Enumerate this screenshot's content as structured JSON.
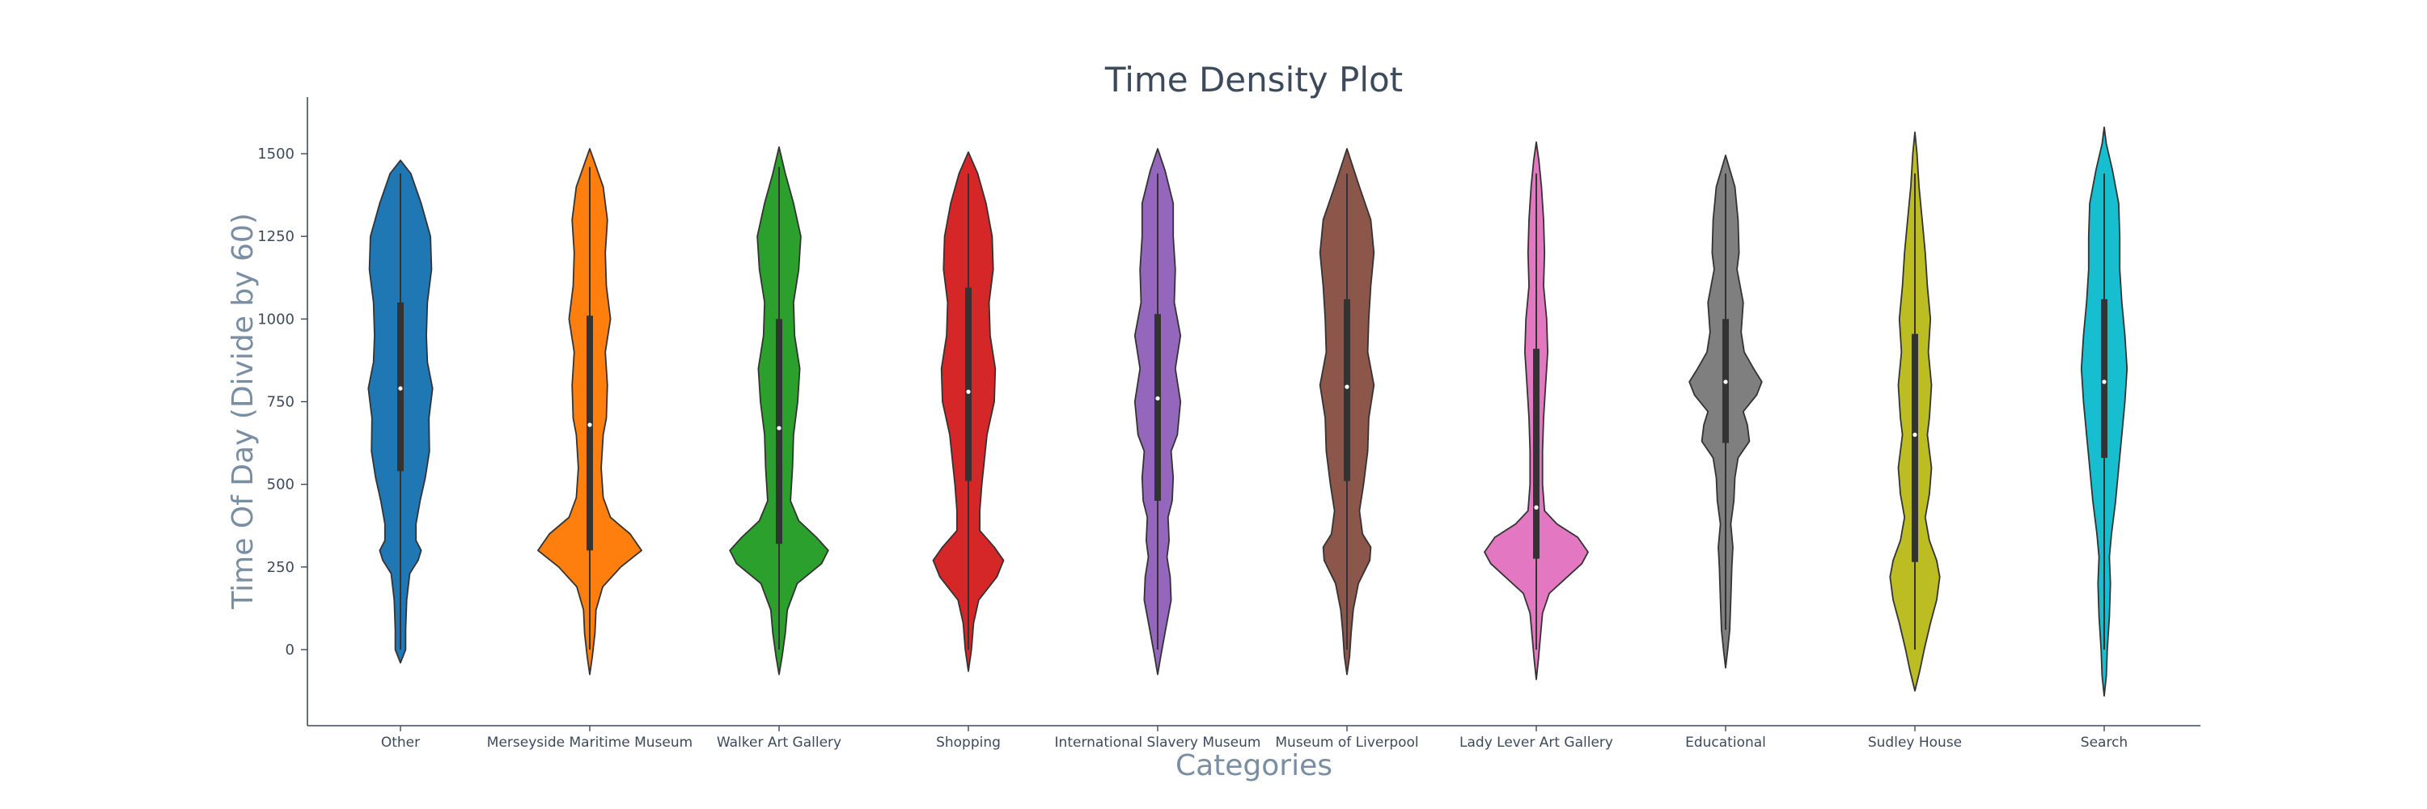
{
  "chart_data": {
    "type": "violin",
    "title": "Time Density Plot",
    "xlabel": "Categories",
    "ylabel": "Time Of Day (Divide by 60)",
    "ylim": [
      -230,
      1680
    ],
    "yticks": [
      0,
      250,
      500,
      750,
      1000,
      1250,
      1500
    ],
    "grid": false,
    "categories": [
      {
        "name": "Other",
        "color": "#1f77b4",
        "min": 0,
        "max": 1440,
        "q1": 540,
        "median": 790,
        "q3": 1050,
        "density": [
          [
            -40,
            0
          ],
          [
            0,
            0.1
          ],
          [
            60,
            0.1
          ],
          [
            150,
            0.12
          ],
          [
            230,
            0.18
          ],
          [
            270,
            0.34
          ],
          [
            300,
            0.4
          ],
          [
            330,
            0.3
          ],
          [
            380,
            0.3
          ],
          [
            450,
            0.38
          ],
          [
            520,
            0.48
          ],
          [
            600,
            0.56
          ],
          [
            700,
            0.55
          ],
          [
            790,
            0.62
          ],
          [
            870,
            0.52
          ],
          [
            950,
            0.5
          ],
          [
            1050,
            0.52
          ],
          [
            1150,
            0.6
          ],
          [
            1250,
            0.58
          ],
          [
            1350,
            0.4
          ],
          [
            1440,
            0.2
          ],
          [
            1480,
            0
          ]
        ]
      },
      {
        "name": "Merseyside Maritime Museum",
        "color": "#ff7f0e",
        "min": 0,
        "max": 1460,
        "q1": 300,
        "median": 680,
        "q3": 1010,
        "density": [
          [
            -75,
            0
          ],
          [
            -20,
            0.05
          ],
          [
            50,
            0.1
          ],
          [
            120,
            0.12
          ],
          [
            190,
            0.25
          ],
          [
            250,
            0.6
          ],
          [
            300,
            1.0
          ],
          [
            350,
            0.78
          ],
          [
            400,
            0.4
          ],
          [
            460,
            0.26
          ],
          [
            550,
            0.22
          ],
          [
            650,
            0.26
          ],
          [
            700,
            0.32
          ],
          [
            800,
            0.34
          ],
          [
            900,
            0.3
          ],
          [
            1000,
            0.4
          ],
          [
            1100,
            0.32
          ],
          [
            1200,
            0.3
          ],
          [
            1300,
            0.34
          ],
          [
            1400,
            0.26
          ],
          [
            1480,
            0.08
          ],
          [
            1515,
            0
          ]
        ]
      },
      {
        "name": "Walker Art Gallery",
        "color": "#2ca02c",
        "min": 0,
        "max": 1460,
        "q1": 320,
        "median": 670,
        "q3": 1000,
        "density": [
          [
            -75,
            0
          ],
          [
            -20,
            0.06
          ],
          [
            50,
            0.12
          ],
          [
            120,
            0.16
          ],
          [
            200,
            0.35
          ],
          [
            260,
            0.82
          ],
          [
            300,
            0.95
          ],
          [
            340,
            0.72
          ],
          [
            390,
            0.38
          ],
          [
            450,
            0.22
          ],
          [
            550,
            0.26
          ],
          [
            650,
            0.28
          ],
          [
            750,
            0.36
          ],
          [
            850,
            0.4
          ],
          [
            950,
            0.3
          ],
          [
            1050,
            0.28
          ],
          [
            1150,
            0.38
          ],
          [
            1250,
            0.42
          ],
          [
            1350,
            0.28
          ],
          [
            1440,
            0.12
          ],
          [
            1520,
            0
          ]
        ]
      },
      {
        "name": "Shopping",
        "color": "#d62728",
        "min": 0,
        "max": 1440,
        "q1": 510,
        "median": 780,
        "q3": 1095,
        "density": [
          [
            -65,
            0
          ],
          [
            0,
            0.06
          ],
          [
            80,
            0.1
          ],
          [
            150,
            0.2
          ],
          [
            220,
            0.55
          ],
          [
            270,
            0.68
          ],
          [
            310,
            0.5
          ],
          [
            360,
            0.22
          ],
          [
            420,
            0.22
          ],
          [
            500,
            0.26
          ],
          [
            560,
            0.3
          ],
          [
            650,
            0.36
          ],
          [
            750,
            0.5
          ],
          [
            850,
            0.52
          ],
          [
            950,
            0.42
          ],
          [
            1050,
            0.4
          ],
          [
            1150,
            0.48
          ],
          [
            1250,
            0.46
          ],
          [
            1350,
            0.34
          ],
          [
            1440,
            0.18
          ],
          [
            1505,
            0
          ]
        ]
      },
      {
        "name": "International Slavery Museum",
        "color": "#9467bd",
        "min": 0,
        "max": 1440,
        "q1": 450,
        "median": 760,
        "q3": 1015,
        "density": [
          [
            -75,
            0
          ],
          [
            -20,
            0.06
          ],
          [
            50,
            0.14
          ],
          [
            150,
            0.26
          ],
          [
            220,
            0.24
          ],
          [
            280,
            0.18
          ],
          [
            330,
            0.22
          ],
          [
            400,
            0.2
          ],
          [
            450,
            0.28
          ],
          [
            520,
            0.3
          ],
          [
            600,
            0.26
          ],
          [
            650,
            0.38
          ],
          [
            750,
            0.44
          ],
          [
            850,
            0.34
          ],
          [
            950,
            0.44
          ],
          [
            1050,
            0.32
          ],
          [
            1150,
            0.34
          ],
          [
            1250,
            0.3
          ],
          [
            1350,
            0.3
          ],
          [
            1450,
            0.14
          ],
          [
            1515,
            0
          ]
        ]
      },
      {
        "name": "Museum of Liverpool",
        "color": "#8c564b",
        "min": 0,
        "max": 1440,
        "q1": 510,
        "median": 795,
        "q3": 1060,
        "density": [
          [
            -75,
            0
          ],
          [
            -20,
            0.05
          ],
          [
            50,
            0.08
          ],
          [
            120,
            0.12
          ],
          [
            200,
            0.22
          ],
          [
            270,
            0.44
          ],
          [
            310,
            0.46
          ],
          [
            350,
            0.3
          ],
          [
            420,
            0.24
          ],
          [
            500,
            0.32
          ],
          [
            600,
            0.4
          ],
          [
            700,
            0.42
          ],
          [
            800,
            0.52
          ],
          [
            900,
            0.4
          ],
          [
            1000,
            0.42
          ],
          [
            1100,
            0.46
          ],
          [
            1200,
            0.52
          ],
          [
            1300,
            0.46
          ],
          [
            1400,
            0.24
          ],
          [
            1515,
            0
          ]
        ]
      },
      {
        "name": "Lady Lever Art Gallery",
        "color": "#e377c2",
        "min": 0,
        "max": 1440,
        "q1": 275,
        "median": 430,
        "q3": 910,
        "density": [
          [
            -90,
            0
          ],
          [
            -30,
            0.04
          ],
          [
            40,
            0.08
          ],
          [
            110,
            0.12
          ],
          [
            170,
            0.25
          ],
          [
            220,
            0.6
          ],
          [
            260,
            0.88
          ],
          [
            295,
            1.0
          ],
          [
            340,
            0.8
          ],
          [
            380,
            0.4
          ],
          [
            420,
            0.16
          ],
          [
            500,
            0.12
          ],
          [
            600,
            0.12
          ],
          [
            700,
            0.14
          ],
          [
            800,
            0.18
          ],
          [
            900,
            0.22
          ],
          [
            1000,
            0.2
          ],
          [
            1100,
            0.14
          ],
          [
            1200,
            0.16
          ],
          [
            1300,
            0.14
          ],
          [
            1400,
            0.1
          ],
          [
            1480,
            0.05
          ],
          [
            1535,
            0
          ]
        ]
      },
      {
        "name": "Educational",
        "color": "#7f7f7f",
        "min": 60,
        "max": 1440,
        "q1": 625,
        "median": 810,
        "q3": 1000,
        "density": [
          [
            -55,
            0
          ],
          [
            0,
            0.04
          ],
          [
            60,
            0.08
          ],
          [
            150,
            0.1
          ],
          [
            250,
            0.12
          ],
          [
            310,
            0.14
          ],
          [
            380,
            0.1
          ],
          [
            450,
            0.16
          ],
          [
            520,
            0.18
          ],
          [
            580,
            0.24
          ],
          [
            630,
            0.46
          ],
          [
            680,
            0.42
          ],
          [
            720,
            0.34
          ],
          [
            770,
            0.6
          ],
          [
            810,
            0.7
          ],
          [
            850,
            0.54
          ],
          [
            900,
            0.36
          ],
          [
            960,
            0.3
          ],
          [
            1050,
            0.34
          ],
          [
            1150,
            0.22
          ],
          [
            1200,
            0.26
          ],
          [
            1300,
            0.24
          ],
          [
            1400,
            0.18
          ],
          [
            1495,
            0
          ]
        ]
      },
      {
        "name": "Sudley House",
        "color": "#bcbd22",
        "min": 0,
        "max": 1440,
        "q1": 265,
        "median": 650,
        "q3": 955,
        "density": [
          [
            -125,
            0
          ],
          [
            -60,
            0.1
          ],
          [
            0,
            0.18
          ],
          [
            80,
            0.3
          ],
          [
            150,
            0.42
          ],
          [
            220,
            0.48
          ],
          [
            270,
            0.42
          ],
          [
            330,
            0.28
          ],
          [
            400,
            0.2
          ],
          [
            470,
            0.28
          ],
          [
            550,
            0.32
          ],
          [
            650,
            0.24
          ],
          [
            700,
            0.28
          ],
          [
            800,
            0.32
          ],
          [
            900,
            0.26
          ],
          [
            1000,
            0.3
          ],
          [
            1100,
            0.24
          ],
          [
            1200,
            0.2
          ],
          [
            1300,
            0.14
          ],
          [
            1400,
            0.08
          ],
          [
            1500,
            0.04
          ],
          [
            1565,
            0
          ]
        ]
      },
      {
        "name": "Search",
        "color": "#17becf",
        "min": 0,
        "max": 1440,
        "q1": 580,
        "median": 810,
        "q3": 1060,
        "density": [
          [
            -140,
            0
          ],
          [
            -80,
            0.04
          ],
          [
            0,
            0.06
          ],
          [
            100,
            0.1
          ],
          [
            200,
            0.12
          ],
          [
            280,
            0.1
          ],
          [
            350,
            0.14
          ],
          [
            450,
            0.22
          ],
          [
            550,
            0.28
          ],
          [
            650,
            0.34
          ],
          [
            750,
            0.4
          ],
          [
            850,
            0.44
          ],
          [
            950,
            0.4
          ],
          [
            1050,
            0.34
          ],
          [
            1150,
            0.3
          ],
          [
            1250,
            0.3
          ],
          [
            1350,
            0.28
          ],
          [
            1450,
            0.16
          ],
          [
            1530,
            0.04
          ],
          [
            1580,
            0
          ]
        ]
      }
    ]
  }
}
